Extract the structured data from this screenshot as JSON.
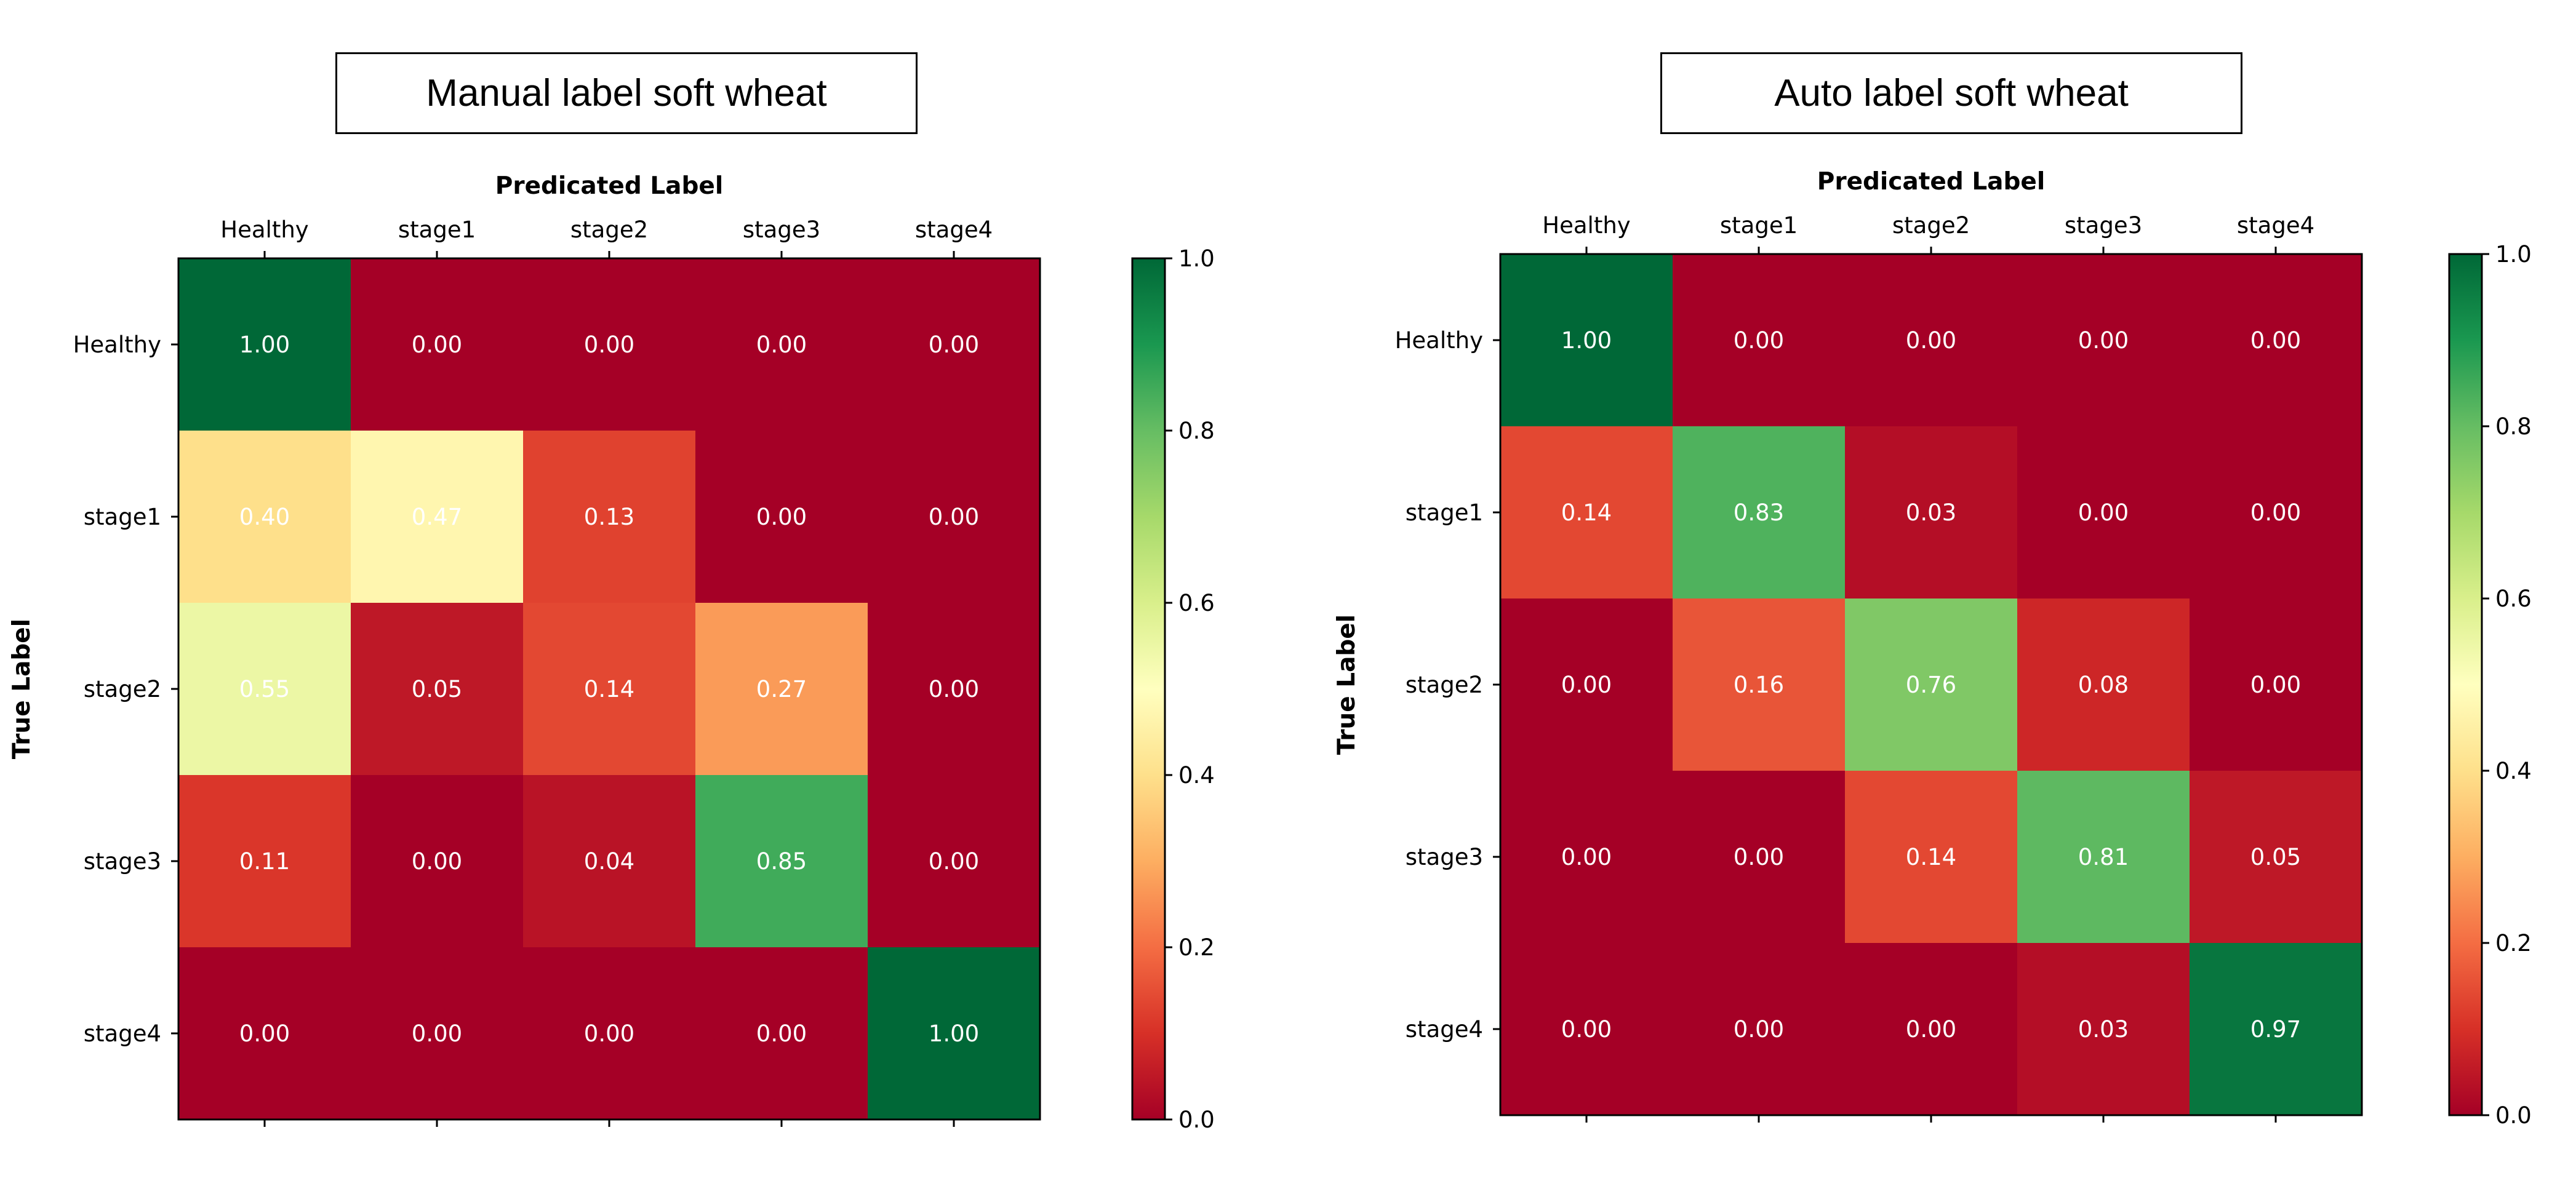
{
  "chart_data": [
    {
      "type": "heatmap",
      "title": "Manual label soft wheat",
      "xlabel": "Predicated Label",
      "ylabel": "True Label",
      "x_categories": [
        "Healthy",
        "stage1",
        "stage2",
        "stage3",
        "stage4"
      ],
      "y_categories": [
        "Healthy",
        "stage1",
        "stage2",
        "stage3",
        "stage4"
      ],
      "values": [
        [
          1.0,
          0.0,
          0.0,
          0.0,
          0.0
        ],
        [
          0.4,
          0.47,
          0.13,
          0.0,
          0.0
        ],
        [
          0.55,
          0.05,
          0.14,
          0.27,
          0.0
        ],
        [
          0.11,
          0.0,
          0.04,
          0.85,
          0.0
        ],
        [
          0.0,
          0.0,
          0.0,
          0.0,
          1.0
        ]
      ],
      "value_labels": [
        [
          "1.00",
          "0.00",
          "0.00",
          "0.00",
          "0.00"
        ],
        [
          "0.40",
          "0.47",
          "0.13",
          "0.00",
          "0.00"
        ],
        [
          "0.55",
          "0.05",
          "0.14",
          "0.27",
          "0.00"
        ],
        [
          "0.11",
          "0.00",
          "0.04",
          "0.85",
          "0.00"
        ],
        [
          "0.00",
          "0.00",
          "0.00",
          "0.00",
          "1.00"
        ]
      ],
      "colormap": "RdYlGn",
      "colorbar": {
        "range": [
          0.0,
          1.0
        ],
        "ticks": [
          "0.0",
          "0.2",
          "0.4",
          "0.6",
          "0.8",
          "1.0"
        ]
      }
    },
    {
      "type": "heatmap",
      "title": "Auto label soft wheat",
      "xlabel": "Predicated Label",
      "ylabel": "True Label",
      "x_categories": [
        "Healthy",
        "stage1",
        "stage2",
        "stage3",
        "stage4"
      ],
      "y_categories": [
        "Healthy",
        "stage1",
        "stage2",
        "stage3",
        "stage4"
      ],
      "values": [
        [
          1.0,
          0.0,
          0.0,
          0.0,
          0.0
        ],
        [
          0.14,
          0.83,
          0.03,
          0.0,
          0.0
        ],
        [
          0.0,
          0.16,
          0.76,
          0.08,
          0.0
        ],
        [
          0.0,
          0.0,
          0.14,
          0.81,
          0.05
        ],
        [
          0.0,
          0.0,
          0.0,
          0.03,
          0.97
        ]
      ],
      "value_labels": [
        [
          "1.00",
          "0.00",
          "0.00",
          "0.00",
          "0.00"
        ],
        [
          "0.14",
          "0.83",
          "0.03",
          "0.00",
          "0.00"
        ],
        [
          "0.00",
          "0.16",
          "0.76",
          "0.08",
          "0.00"
        ],
        [
          "0.00",
          "0.00",
          "0.14",
          "0.81",
          "0.05"
        ],
        [
          "0.00",
          "0.00",
          "0.00",
          "0.03",
          "0.97"
        ]
      ],
      "colormap": "RdYlGn",
      "colorbar": {
        "range": [
          0.0,
          1.0
        ],
        "ticks": [
          "0.0",
          "0.2",
          "0.4",
          "0.6",
          "0.8",
          "1.0"
        ]
      }
    }
  ]
}
